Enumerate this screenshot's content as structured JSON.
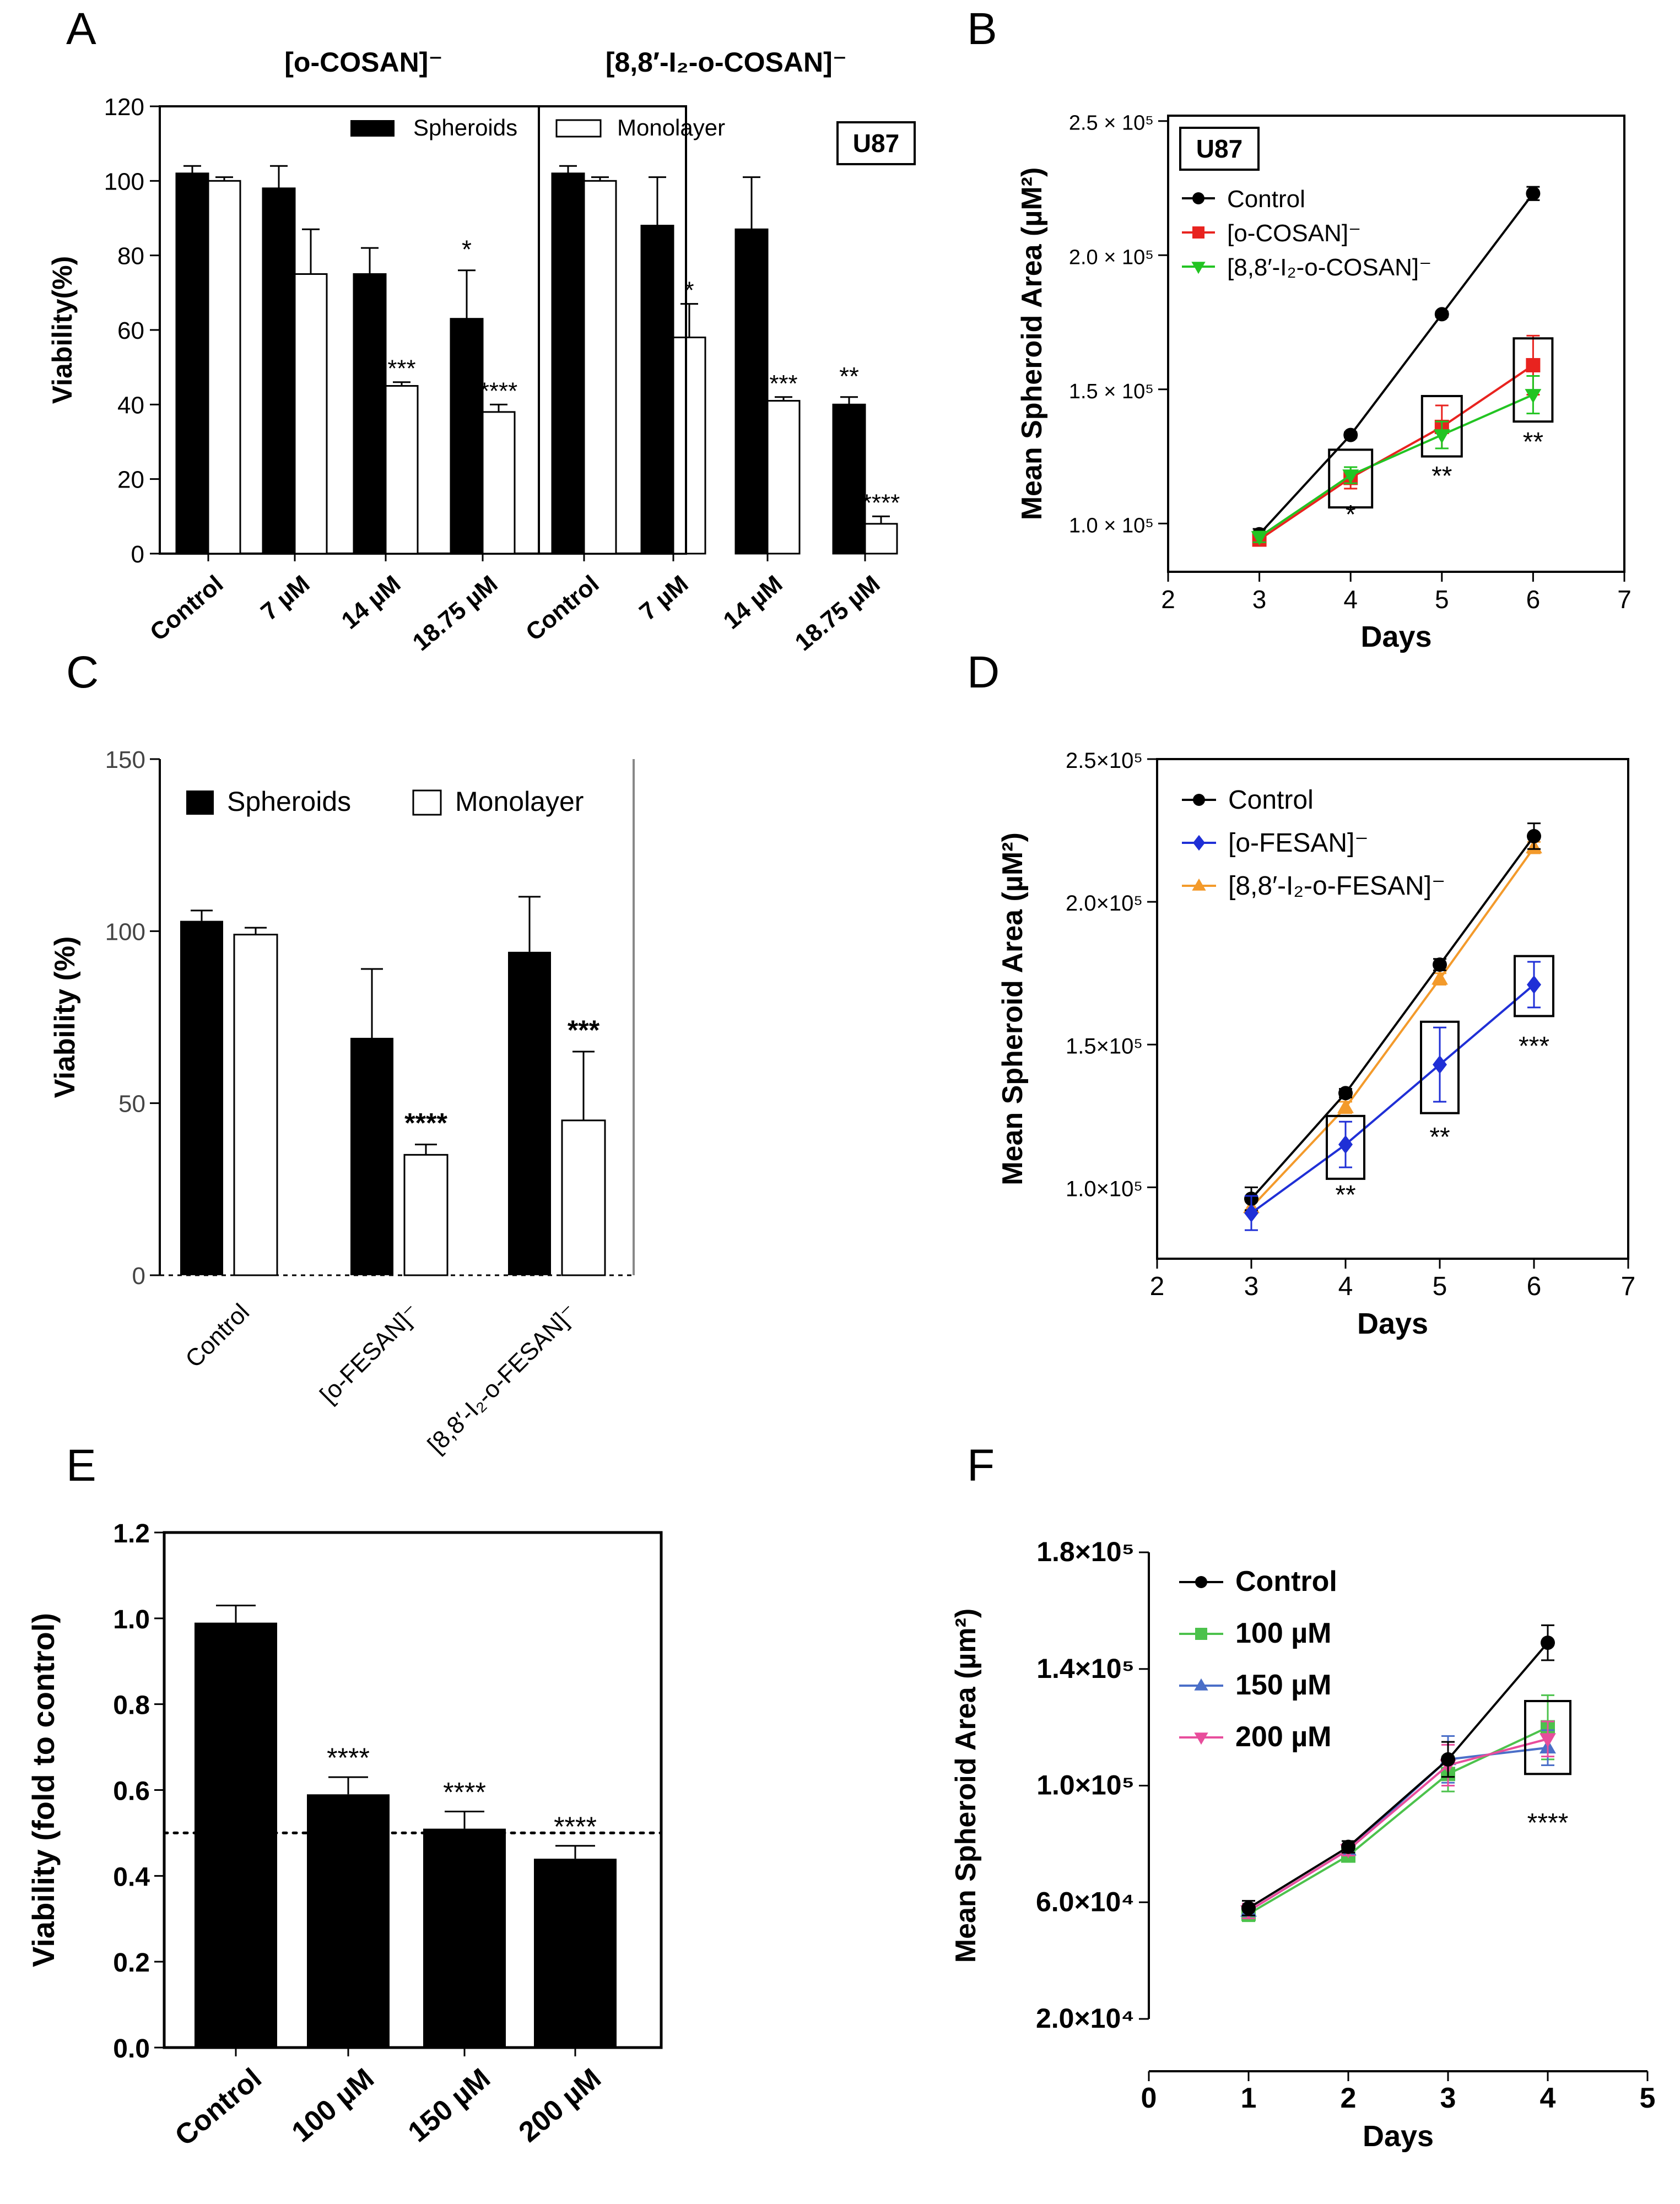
{
  "panels": {
    "A": "A",
    "B": "B",
    "C": "C",
    "D": "D",
    "E": "E",
    "F": "F"
  },
  "colors": {
    "black": "#000000",
    "white": "#ffffff",
    "red": "#e8231f",
    "green": "#22c422",
    "blue": "#1f2fd6",
    "orange": "#f39a2b",
    "lime": "#4cc24c",
    "steel": "#4b6fc8",
    "pink": "#e84d9c"
  },
  "chart_data": [
    {
      "panel": "A",
      "type": "bar",
      "ylabel": "Viability(%)",
      "ylim": [
        0,
        120
      ],
      "yticks": [
        0,
        20,
        40,
        60,
        80,
        100,
        120
      ],
      "group_titles": [
        "[o-COSAN]⁻",
        "[8,8′-I₂-o-COSAN]⁻"
      ],
      "categories": [
        "Control",
        "7 µM",
        "14 µM",
        "18.75 µM",
        "Control",
        "7 µM",
        "14 µM",
        "18.75 µM"
      ],
      "cell_line": "U87",
      "series": [
        {
          "name": "Spheroids",
          "values": [
            102,
            98,
            75,
            63,
            102,
            88,
            87,
            40
          ],
          "errors": [
            2,
            6,
            7,
            13,
            2,
            13,
            14,
            2
          ],
          "labels": [
            "",
            "",
            "",
            "*",
            "",
            "",
            "",
            "**"
          ]
        },
        {
          "name": "Monolayer",
          "values": [
            100,
            75,
            45,
            38,
            100,
            58,
            41,
            8
          ],
          "errors": [
            1,
            12,
            1,
            2,
            1,
            9,
            1,
            2
          ],
          "labels": [
            "",
            "",
            "***",
            "****",
            "",
            "*",
            "***",
            "****"
          ]
        }
      ]
    },
    {
      "panel": "B",
      "type": "line",
      "cell_line": "U87",
      "xlabel": "Days",
      "ylabel": "Mean Spheroid Area (µM²)",
      "xlim": [
        2,
        7
      ],
      "xticks": [
        2,
        3,
        4,
        5,
        6,
        7
      ],
      "ylim": [
        82000,
        252000
      ],
      "yticks": [
        100000,
        150000,
        200000,
        250000
      ],
      "ytick_labels": [
        "1.0 × 10⁵",
        "1.5 × 10⁵",
        "2.0 × 10⁵",
        "2.5 × 10⁵"
      ],
      "series": [
        {
          "name": "Control",
          "x": [
            3,
            4,
            5,
            6
          ],
          "values": [
            96000,
            133000,
            178000,
            223000
          ],
          "errors": [
            2000,
            1000,
            1000,
            2500
          ]
        },
        {
          "name": "[o-COSAN]⁻",
          "x": [
            3,
            4,
            5,
            6
          ],
          "values": [
            94000,
            117000,
            136000,
            159000
          ],
          "errors": [
            2000,
            4000,
            8000,
            11000
          ]
        },
        {
          "name": "[8,8′-I₂-o-COSAN]⁻",
          "x": [
            3,
            4,
            5,
            6
          ],
          "values": [
            95000,
            118000,
            133000,
            148000
          ],
          "errors": [
            2000,
            3000,
            5000,
            7000
          ]
        }
      ],
      "significance": [
        {
          "x": 4,
          "label": "*"
        },
        {
          "x": 5,
          "label": "**"
        },
        {
          "x": 6,
          "label": "**"
        }
      ]
    },
    {
      "panel": "C",
      "type": "bar",
      "ylabel": "Viability (%)",
      "ylim": [
        0,
        150
      ],
      "yticks": [
        0,
        50,
        100,
        150
      ],
      "categories": [
        "Control",
        "[o-FESAN]⁻",
        "[8,8′-I₂-o-FESAN]⁻"
      ],
      "series": [
        {
          "name": "Spheroids",
          "values": [
            103,
            69,
            94
          ],
          "errors": [
            3,
            20,
            16
          ],
          "labels": [
            "",
            "",
            ""
          ]
        },
        {
          "name": "Monolayer",
          "values": [
            99,
            35,
            45
          ],
          "errors": [
            2,
            3,
            20
          ],
          "labels": [
            "",
            "****",
            "***"
          ]
        }
      ]
    },
    {
      "panel": "D",
      "type": "line",
      "xlabel": "Days",
      "ylabel": "Mean Spheroid Area (µM²)",
      "xlim": [
        2,
        7
      ],
      "xticks": [
        2,
        3,
        4,
        5,
        6,
        7
      ],
      "ylim": [
        75000,
        250000
      ],
      "yticks": [
        100000,
        150000,
        200000,
        250000
      ],
      "ytick_labels": [
        "1.0×10⁵",
        "1.5×10⁵",
        "2.0×10⁵",
        "2.5×10⁵"
      ],
      "series": [
        {
          "name": "Control",
          "x": [
            3,
            4,
            5,
            6
          ],
          "values": [
            96000,
            133000,
            178000,
            223000
          ],
          "errors": [
            4000,
            1500,
            2000,
            4500
          ]
        },
        {
          "name": "[o-FESAN]⁻",
          "x": [
            3,
            4,
            5,
            6
          ],
          "values": [
            91000,
            115000,
            143000,
            171000
          ],
          "errors": [
            6000,
            8000,
            13000,
            8000
          ]
        },
        {
          "name": "[8,8′-I₂-o-FESAN]⁻",
          "x": [
            3,
            4,
            5,
            6
          ],
          "values": [
            93000,
            128000,
            173000,
            219000
          ],
          "errors": [
            2000,
            2000,
            2000,
            2000
          ]
        }
      ],
      "significance": [
        {
          "x": 4,
          "label": "**"
        },
        {
          "x": 5,
          "label": "**"
        },
        {
          "x": 6,
          "label": "***"
        }
      ]
    },
    {
      "panel": "E",
      "type": "bar",
      "ylabel": "Viability (fold to control)",
      "ylim": [
        0,
        1.2
      ],
      "yticks": [
        0.0,
        0.2,
        0.4,
        0.6,
        0.8,
        1.0,
        1.2
      ],
      "ytick_labels": [
        "0.0",
        "0.2",
        "0.4",
        "0.6",
        "0.8",
        "1.0",
        "1.2"
      ],
      "threshold": 0.5,
      "categories": [
        "Control",
        "100 µM",
        "150 µM",
        "200 µM"
      ],
      "values": [
        0.99,
        0.59,
        0.51,
        0.44
      ],
      "errors": [
        0.04,
        0.04,
        0.04,
        0.03
      ],
      "labels": [
        "",
        "****",
        "****",
        "****"
      ]
    },
    {
      "panel": "F",
      "type": "line",
      "xlabel": "Days",
      "ylabel": "Mean Spheroid Area (µm²)",
      "xlim": [
        0,
        5
      ],
      "xticks": [
        0,
        1,
        2,
        3,
        4,
        5
      ],
      "ylim": [
        20000,
        180000
      ],
      "yticks": [
        20000,
        60000,
        100000,
        140000,
        180000
      ],
      "ytick_labels": [
        "2.0×10⁴",
        "6.0×10⁴",
        "1.0×10⁵",
        "1.4×10⁵",
        "1.8×10⁵"
      ],
      "series": [
        {
          "name": "Control",
          "x": [
            1,
            2,
            3,
            4
          ],
          "values": [
            58000,
            79000,
            109000,
            149000
          ],
          "errors": [
            2500,
            2000,
            6000,
            6000
          ]
        },
        {
          "name": "100 µM",
          "x": [
            1,
            2,
            3,
            4
          ],
          "values": [
            56000,
            76000,
            104000,
            120000
          ],
          "errors": [
            2500,
            2000,
            6000,
            11000
          ]
        },
        {
          "name": "150 µM",
          "x": [
            1,
            2,
            3,
            4
          ],
          "values": [
            57000,
            78000,
            109000,
            113000
          ],
          "errors": [
            2500,
            2000,
            8000,
            6000
          ]
        },
        {
          "name": "200 µM",
          "x": [
            1,
            2,
            3,
            4
          ],
          "values": [
            57000,
            78000,
            107000,
            116000
          ],
          "errors": [
            2500,
            2000,
            7000,
            6000
          ]
        }
      ],
      "significance": [
        {
          "x": 4,
          "label": "****"
        }
      ]
    }
  ]
}
